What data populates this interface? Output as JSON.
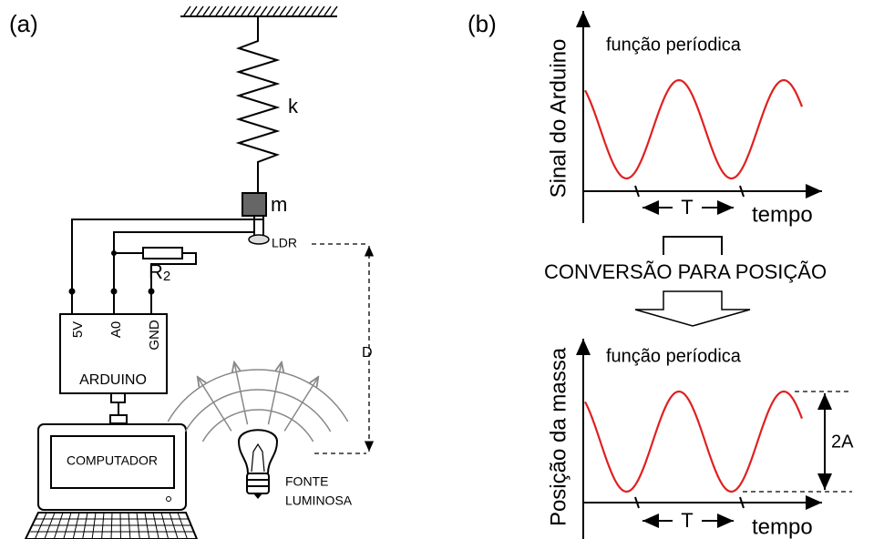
{
  "panel_a": {
    "label": "(a)",
    "spring_label": "k",
    "mass_label": "m",
    "sensor_label": "LDR",
    "resistor_label": "R",
    "resistor_subscript": "2",
    "arduino": {
      "pins": [
        "5V",
        "A0",
        "GND"
      ],
      "label": "ARDUINO"
    },
    "computer_label": "COMPUTADOR",
    "distance_label": "D",
    "light_source_label": [
      "FONTE",
      "LUMINOSA"
    ]
  },
  "panel_b": {
    "label": "(b)",
    "signal_plot": {
      "y_label": "Sinal do Arduino",
      "title": "função períodica",
      "x_label": "tempo",
      "period_label": "T"
    },
    "conversion_label": "CONVERSÃO PARA POSIÇÃO",
    "position_plot": {
      "y_label": "Posição da massa",
      "title": "função períodica",
      "x_label": "tempo",
      "period_label": "T",
      "amplitude_label": "2A"
    }
  }
}
